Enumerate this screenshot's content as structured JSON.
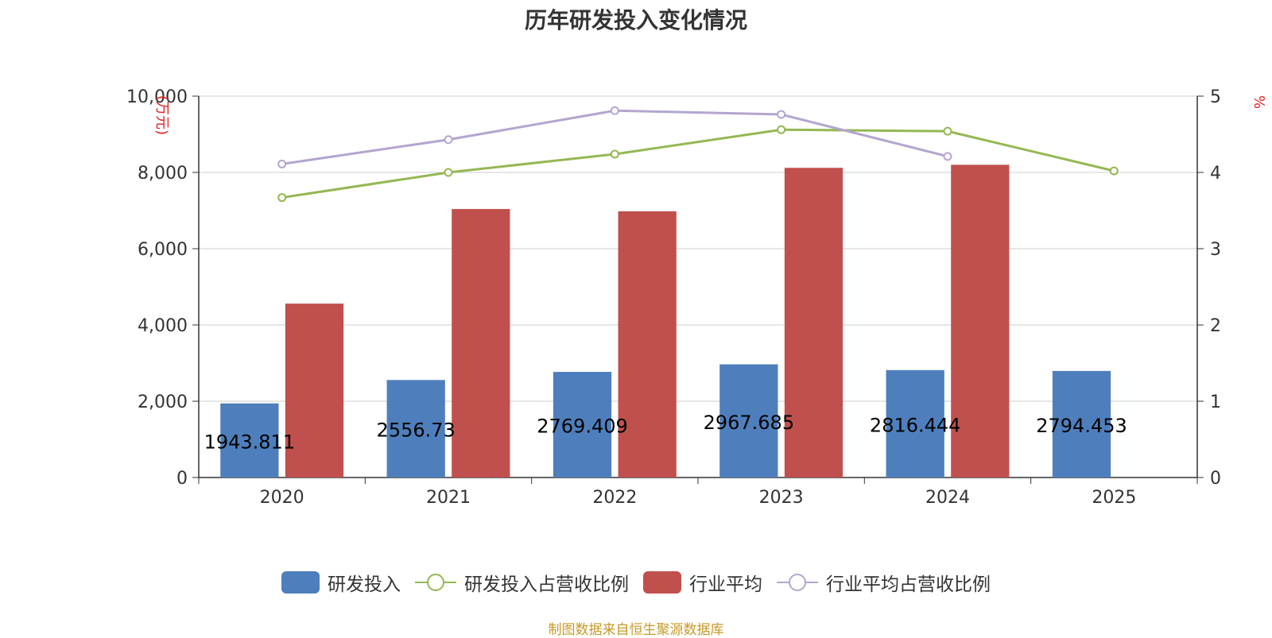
{
  "chart_data": {
    "type": "bar",
    "title": "历年研发投入变化情况",
    "categories": [
      "2020",
      "2021",
      "2022",
      "2023",
      "2024",
      "2025"
    ],
    "y_left": {
      "unit_label": "(万元)",
      "ticks": [
        "0",
        "2,000",
        "4,000",
        "6,000",
        "8,000",
        "10,000"
      ],
      "lim": [
        0,
        10000
      ]
    },
    "y_right": {
      "unit_label": "%",
      "ticks": [
        "0",
        "1",
        "2",
        "3",
        "4",
        "5"
      ],
      "lim": [
        0,
        5
      ]
    },
    "series": [
      {
        "name": "研发投入",
        "kind": "bar",
        "axis": "left",
        "color": "#4e7fbc",
        "values": [
          1943.811,
          2556.73,
          2769.409,
          2967.685,
          2816.444,
          2794.453
        ],
        "labels": [
          "1943.811",
          "2556.73",
          "2769.409",
          "2967.685",
          "2816.444",
          "2794.453"
        ]
      },
      {
        "name": "研发投入占营收比例",
        "kind": "line",
        "axis": "right",
        "color": "#95b753",
        "values": [
          3.67,
          4.0,
          4.24,
          4.56,
          4.54,
          4.02
        ]
      },
      {
        "name": "行业平均",
        "kind": "bar",
        "axis": "left",
        "color": "#c0504d",
        "values": [
          4560,
          7040,
          6980,
          8120,
          8200,
          null
        ]
      },
      {
        "name": "行业平均占营收比例",
        "kind": "line",
        "axis": "right",
        "color": "#b3a6cf",
        "values": [
          4.11,
          4.43,
          4.81,
          4.76,
          4.21,
          null
        ]
      }
    ],
    "grid": true,
    "legend_position": "bottom"
  },
  "source_note": "制图数据来自恒生聚源数据库"
}
